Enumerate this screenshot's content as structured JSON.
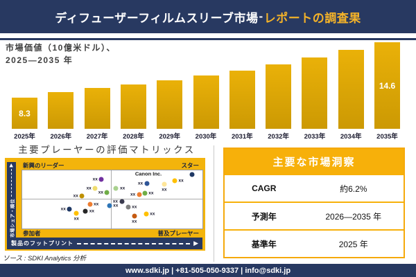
{
  "header": {
    "title_main": "ディフューザーフィルムスリーブ市場",
    "title_separator": "-",
    "title_accent": "レポートの調査果"
  },
  "chart_data": {
    "type": "bar",
    "title": "市場価値（10億米ドル）、2025—2035 年",
    "title_line1": "市場価値（10億米ドル）、",
    "title_line2": "2025—2035 年",
    "xlabel": "",
    "ylabel": "",
    "gridlines": false,
    "categories": [
      "2025年",
      "2026年",
      "2027年",
      "2028年",
      "2029年",
      "2030年",
      "2031年",
      "2032年",
      "2033年",
      "2034年",
      "2035年"
    ],
    "values": [
      8.3,
      8.9,
      9.4,
      9.8,
      10.3,
      10.8,
      11.4,
      12.1,
      12.9,
      13.7,
      14.6
    ],
    "value_labels_shown": [
      "2025年",
      "2035年"
    ],
    "labeled_bars": {
      "2025年": "8.3",
      "2035年": "14.6"
    },
    "bar_color": "#D9A406"
  },
  "matrix": {
    "title": "主要プレーヤーの評価マトリックス",
    "y_axis_label": "市場シェア・順位",
    "x_axis_label": "製品のフットプリント",
    "quadrants": {
      "top_left": "新興のリーダー",
      "top_right": "スター",
      "bottom_left": "参加者",
      "bottom_right": "普及プレーヤー"
    },
    "company_label": "Canon Inc.",
    "point_label": "xx",
    "points": [
      {
        "x": 44.0,
        "y": 15.5,
        "color": "#7030A0",
        "side": "left"
      },
      {
        "x": 40.5,
        "y": 31.0,
        "color": "#EFDC6E",
        "side": "left"
      },
      {
        "x": 33.2,
        "y": 44.0,
        "color": "#BF9000",
        "side": "left"
      },
      {
        "x": 47.1,
        "y": 38.1,
        "color": "#70AD47",
        "side": "left"
      },
      {
        "x": 52.1,
        "y": 31.5,
        "color": "#A9D18E",
        "side": "right"
      },
      {
        "x": 37.5,
        "y": 58.3,
        "color": "#ED7D31",
        "side": "right"
      },
      {
        "x": 48.3,
        "y": 60.7,
        "color": "#2E75B6",
        "side": "right"
      },
      {
        "x": 26.3,
        "y": 66.7,
        "color": "#1F3864",
        "side": "left"
      },
      {
        "x": 35.1,
        "y": 70.2,
        "color": "#262626",
        "side": "right"
      },
      {
        "x": 30.1,
        "y": 73.8,
        "color": "#FFC000",
        "side": "below"
      },
      {
        "x": 94.2,
        "y": 7.1,
        "color": "#1F3864",
        "side": "none"
      },
      {
        "x": 69.1,
        "y": 22.6,
        "color": "#2F5597",
        "side": "left"
      },
      {
        "x": 78.8,
        "y": 23.8,
        "color": "#FFE699",
        "side": "below"
      },
      {
        "x": 84.6,
        "y": 17.9,
        "color": "#FFC000",
        "side": "right"
      },
      {
        "x": 64.9,
        "y": 41.7,
        "color": "#ED7D31",
        "side": "left"
      },
      {
        "x": 68.0,
        "y": 39.3,
        "color": "#70AD47",
        "side": "right"
      },
      {
        "x": 55.2,
        "y": 53.6,
        "color": "#3B3B4F",
        "side": "left"
      },
      {
        "x": 58.7,
        "y": 63.1,
        "color": "#808080",
        "side": "right"
      },
      {
        "x": 62.2,
        "y": 78.6,
        "color": "#C55A11",
        "side": "below"
      },
      {
        "x": 68.7,
        "y": 75.0,
        "color": "#FFC000",
        "side": "right"
      }
    ],
    "source": "ソース : SDKI Analytics 分析"
  },
  "insights": {
    "title": "主要な市場洞察",
    "rows": [
      {
        "label": "CAGR",
        "value": "約6.2%"
      },
      {
        "label": "予測年",
        "value": "2026—2035 年"
      },
      {
        "label": "基準年",
        "value": "2025 年"
      }
    ]
  },
  "footer": {
    "text": "www.sdki.jp | +81-505-050-9337 | info@sdki.jp"
  },
  "colors": {
    "navy": "#283961",
    "gold_panel": "#F3B40C",
    "gold_table": "#F7B00A",
    "title_accent": "#F3B229",
    "bar_gold": "#D9A406"
  }
}
